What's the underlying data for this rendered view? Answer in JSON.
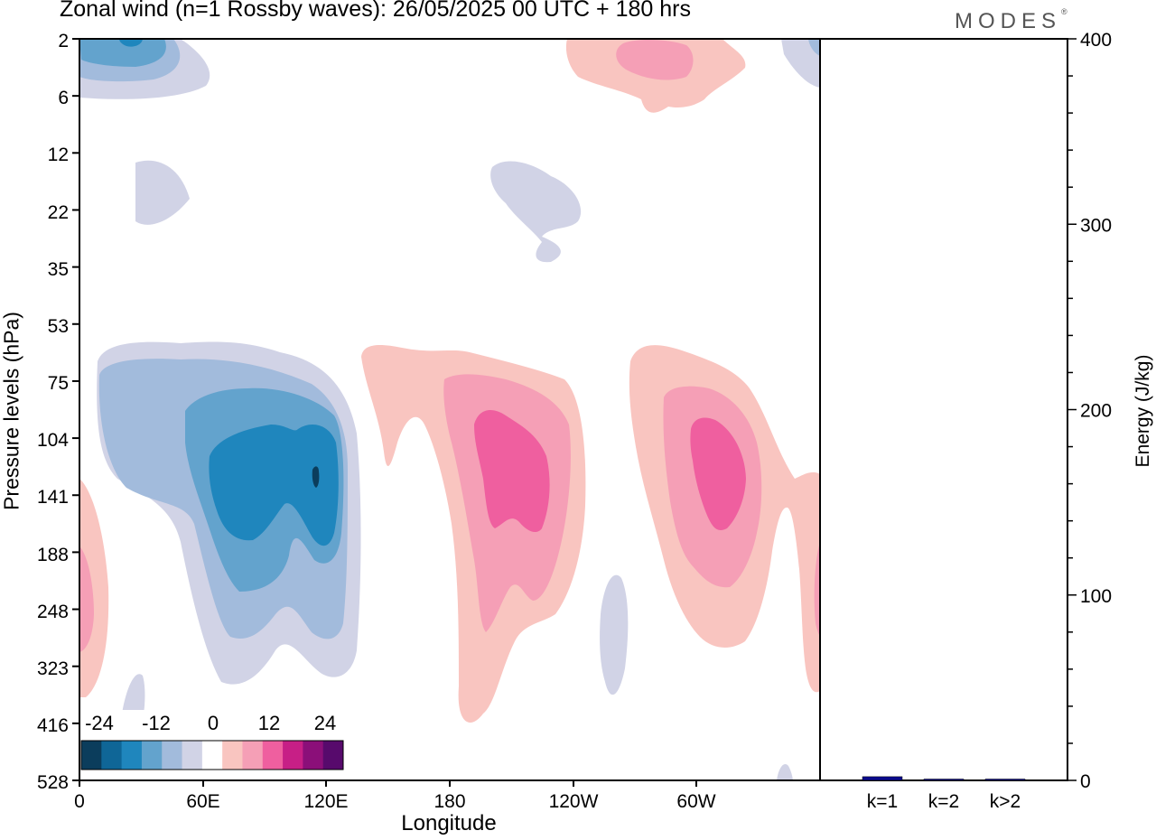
{
  "chart_data": [
    {
      "type": "heatmap",
      "title": "Zonal wind (n=1 Rossby waves):  26/05/2025  00 UTC  + 180 hrs",
      "xlabel": "Longitude",
      "ylabel": "Pressure levels (hPa)",
      "x_ticks": [
        "0",
        "60E",
        "120E",
        "180",
        "120W",
        "60W"
      ],
      "x_range_deg": [
        0,
        360
      ],
      "y_ticks": [
        "2",
        "6",
        "12",
        "22",
        "35",
        "53",
        "75",
        "104",
        "141",
        "188",
        "248",
        "323",
        "416",
        "528"
      ],
      "colorbar": {
        "tick_labels": [
          "-24",
          "-12",
          "0",
          "12",
          "24"
        ],
        "colors": [
          "#0b3d5c",
          "#0f6697",
          "#1f86bd",
          "#63a3cd",
          "#a2bbdc",
          "#d1d3e6",
          "#ffffff",
          "#f9c5c0",
          "#f59fb6",
          "#ef5f9f",
          "#c71f86",
          "#8b0f79",
          "#570a6c"
        ]
      },
      "contours": [
        {
          "label": "blue upper-left 0-50E near 2 hPa",
          "sign": "negative",
          "min_level": -24
        },
        {
          "label": "blue max 60E-120E 104-248 hPa",
          "sign": "negative",
          "min_level": -30
        },
        {
          "label": "pink max 180-150W 104-248 hPa",
          "sign": "positive",
          "max_level": 24
        },
        {
          "label": "pink max 90W-60W 104-188 hPa",
          "sign": "positive",
          "max_level": 24
        },
        {
          "label": "pink upper 130W-80W near 2-6 hPa",
          "sign": "positive",
          "max_level": 18
        }
      ]
    },
    {
      "type": "bar",
      "ylabel": "Energy (J/kg)",
      "categories": [
        "k=1",
        "k=2",
        "k>2"
      ],
      "values": [
        2,
        0.5,
        0.5
      ],
      "ylim": [
        0,
        400
      ],
      "y_ticks": [
        "0",
        "100",
        "200",
        "300",
        "400"
      ],
      "bar_color": "#0a0a8c"
    }
  ],
  "logo": {
    "text": "MODES",
    "mark": "®"
  }
}
